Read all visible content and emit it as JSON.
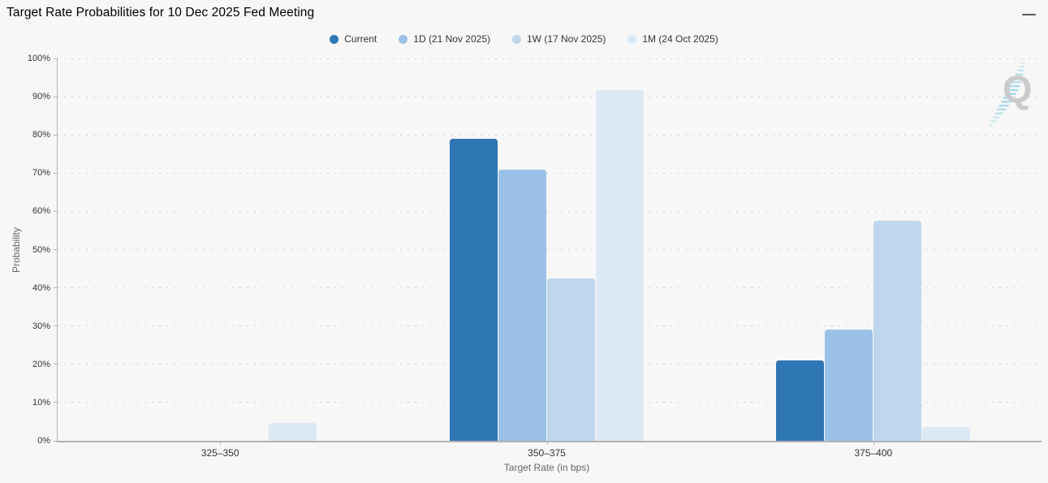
{
  "header": {
    "title": "Target Rate Probabilities for 10 Dec 2025 Fed Meeting"
  },
  "toolbar": {
    "menu_icon": "hamburger-icon"
  },
  "watermark": {
    "letter": "Q",
    "letter_color": "#c9cbcd",
    "swoosh_color": "#7ec6e8"
  },
  "chart_data": {
    "type": "bar",
    "title": "Target Rate Probabilities for 10 Dec 2025 Fed Meeting",
    "xlabel": "Target Rate (in bps)",
    "ylabel": "Probability",
    "categories": [
      "325–350",
      "350–375",
      "375–400"
    ],
    "series": [
      {
        "name": "Current",
        "color": "#2f76b5",
        "values": [
          0,
          78.9,
          21.0
        ]
      },
      {
        "name": "1D (21 Nov 2025)",
        "color": "#9cc1e6",
        "values": [
          0,
          70.9,
          29.0
        ]
      },
      {
        "name": "1W (17 Nov 2025)",
        "color": "#bed7ee",
        "values": [
          0,
          42.4,
          57.6
        ]
      },
      {
        "name": "1M (24 Oct 2025)",
        "color": "#dce9f5",
        "values": [
          4.7,
          91.7,
          3.6
        ]
      }
    ],
    "ylim": [
      0,
      100
    ],
    "ytick_step": 10,
    "ytick_labels": [
      "0%",
      "10%",
      "20%",
      "30%",
      "40%",
      "50%",
      "60%",
      "70%",
      "80%",
      "90%",
      "100%"
    ],
    "grid": "horizontal-dotted",
    "legend_position": "top",
    "background": "#f7f7f7"
  }
}
